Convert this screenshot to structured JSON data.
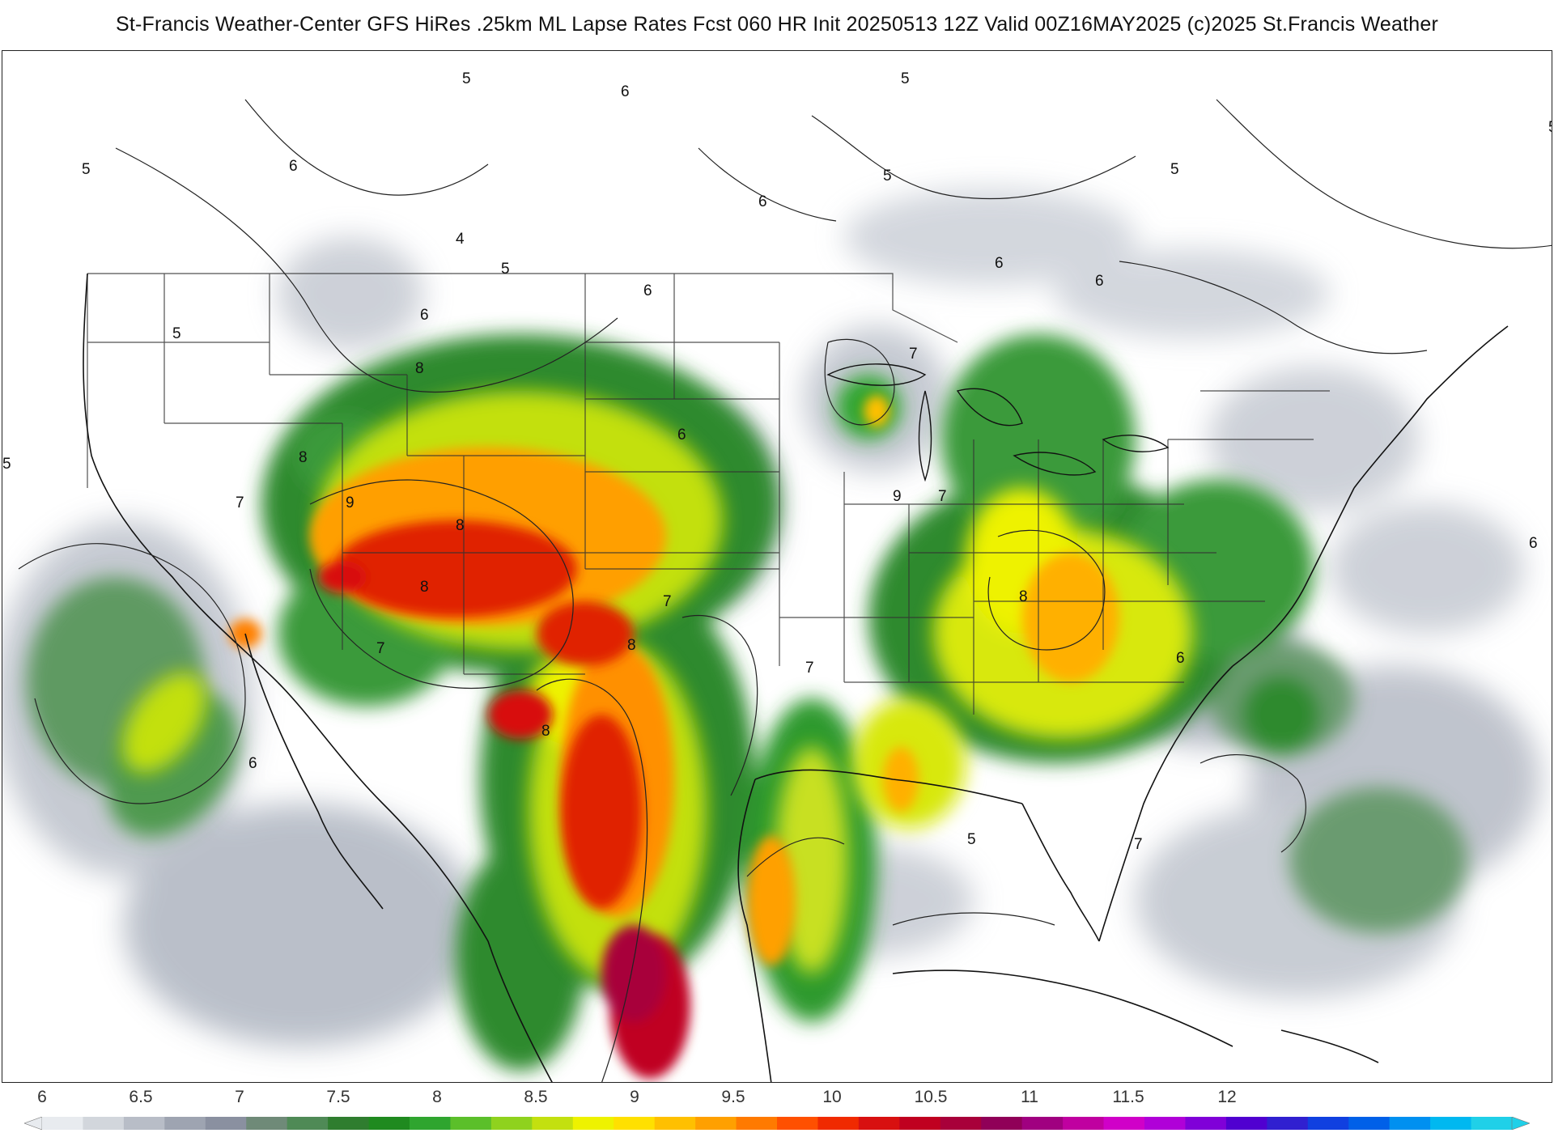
{
  "header": {
    "title": "St-Francis Weather-Center GFS HiRes .25km ML Lapse Rates  Fcst 060 HR Init 20250513 12Z  Valid 00Z16MAY2025   (c)2025 St.Francis Weather"
  },
  "contour_labels": [
    "5",
    "5",
    "5",
    "5",
    "5",
    "5",
    "5",
    "5",
    "5",
    "4",
    "5",
    "6",
    "6",
    "6",
    "6",
    "6",
    "6",
    "6",
    "6",
    "6",
    "6",
    "6",
    "7",
    "7",
    "7",
    "7",
    "7",
    "7",
    "7",
    "8",
    "8",
    "8",
    "8",
    "8",
    "8",
    "8",
    "9",
    "9"
  ],
  "legend": {
    "ticks": [
      "6",
      "6.5",
      "7",
      "7.5",
      "8",
      "8.5",
      "9",
      "9.5",
      "10",
      "10.5",
      "11",
      "11.5",
      "12"
    ],
    "colors": [
      "#e8ebef",
      "#d2d6dc",
      "#b8bdc7",
      "#9ea4b1",
      "#8a90a0",
      "#6f8a78",
      "#4f8a56",
      "#2f7d2f",
      "#1f8a1f",
      "#2fa52f",
      "#5bbf2a",
      "#8fd21e",
      "#c3e00f",
      "#eef200",
      "#ffe000",
      "#ffc000",
      "#ffa000",
      "#ff7a00",
      "#ff5000",
      "#f02a00",
      "#d81010",
      "#c00020",
      "#a8003a",
      "#900058",
      "#a00080",
      "#c000a0",
      "#d000c8",
      "#b000d8",
      "#8000d8",
      "#5000d0",
      "#3020d0",
      "#1040e0",
      "#0060e8",
      "#0090f0",
      "#00b8f0",
      "#20d0e8"
    ]
  }
}
